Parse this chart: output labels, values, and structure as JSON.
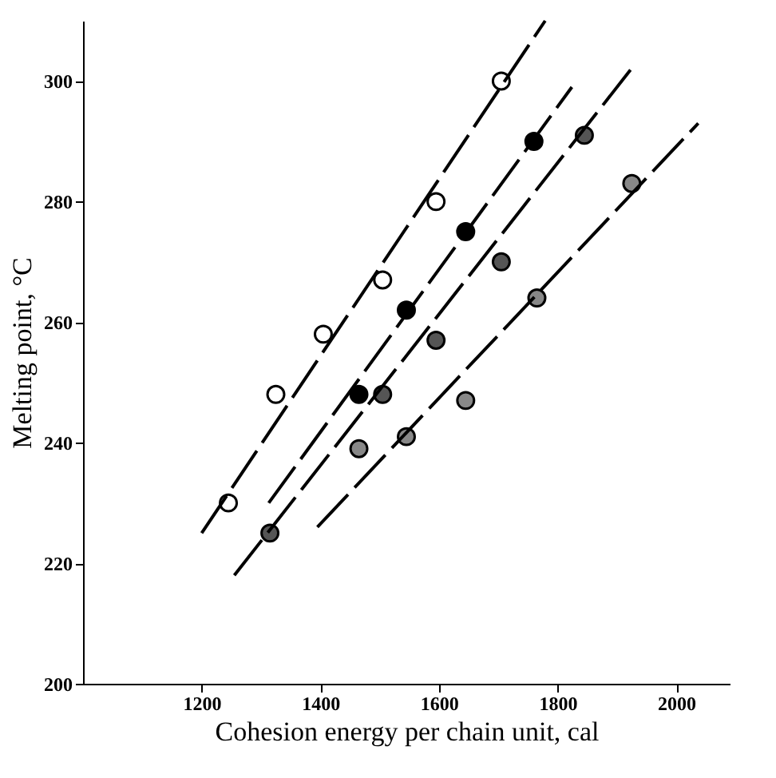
{
  "chart_data": {
    "type": "scatter",
    "xlabel": "Cohesion energy per chain unit, cal",
    "ylabel": "Melting point, °C",
    "xlim": [
      1000,
      2090
    ],
    "ylim": [
      200,
      310
    ],
    "xticks": [
      1200,
      1400,
      1600,
      1800,
      2000
    ],
    "yticks": [
      200,
      220,
      240,
      260,
      280,
      300
    ],
    "marker": "circle",
    "series": [
      {
        "color": "#ffffff",
        "x": [
          1245,
          1325,
          1405,
          1505,
          1595,
          1705
        ],
        "values": [
          230,
          248,
          258,
          267,
          280,
          300
        ]
      },
      {
        "color": "#000000",
        "x": [
          1465,
          1545,
          1645,
          1760
        ],
        "values": [
          248,
          262,
          275,
          290
        ]
      },
      {
        "color": "#555555",
        "x": [
          1315,
          1505,
          1595,
          1705,
          1845
        ],
        "values": [
          225,
          248,
          257,
          270,
          291
        ]
      },
      {
        "color": "#888888",
        "x": [
          1465,
          1545,
          1645,
          1765,
          1925
        ],
        "values": [
          239,
          241,
          247,
          264,
          283
        ]
      },
      {
        "type": "line",
        "marker": "none",
        "line_style": "dashed",
        "color": "#000000",
        "x": [
          1200,
          1779
        ],
        "values": [
          225,
          310
        ]
      },
      {
        "type": "line",
        "marker": "none",
        "line_style": "dashed",
        "color": "#000000",
        "x": [
          1313,
          1824
        ],
        "values": [
          230,
          299
        ]
      },
      {
        "type": "line",
        "marker": "none",
        "line_style": "dashed",
        "color": "#000000",
        "x": [
          1255,
          1924
        ],
        "values": [
          218,
          302
        ]
      },
      {
        "type": "line",
        "marker": "none",
        "line_style": "dashed",
        "color": "#000000",
        "x": [
          1395,
          2037
        ],
        "values": [
          226,
          293
        ]
      }
    ]
  }
}
